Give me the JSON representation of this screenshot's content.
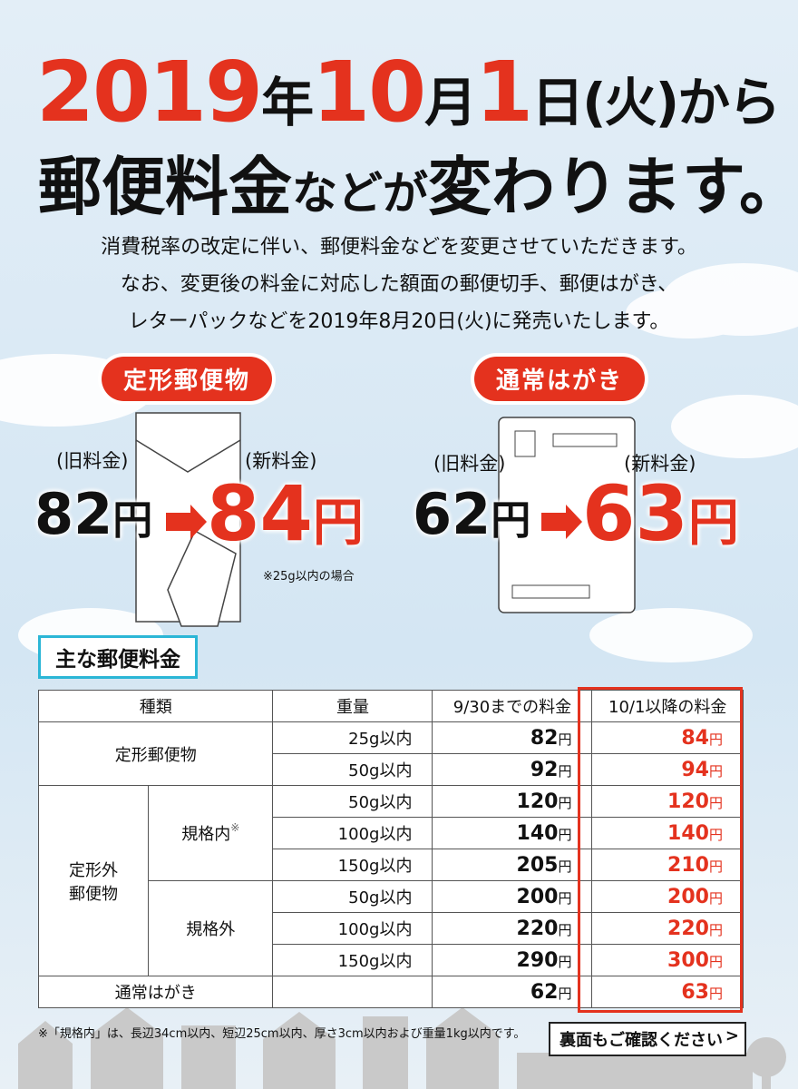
{
  "header": {
    "title_line1": [
      "2019",
      "年",
      "10",
      "月",
      "1",
      "日(火)から"
    ],
    "title_line2": [
      "郵便料金",
      "などが",
      "変わります。"
    ],
    "intro": [
      "消費税率の改定に伴い、郵便料金などを変更させていただきます。",
      "なお、変更後の料金に対応した額面の郵便切手、郵便はがき、",
      "レターパックなどを2019年8月20日(火)に発売いたします。"
    ]
  },
  "currency_unit": "円",
  "highlights": [
    {
      "label": "定形郵便物",
      "old_label": "(旧料金)",
      "new_label": "(新料金)",
      "old_price": 82,
      "new_price": 84,
      "note": "※25g以内の場合"
    },
    {
      "label": "通常はがき",
      "old_label": "(旧料金)",
      "new_label": "(新料金)",
      "old_price": 62,
      "new_price": 63
    }
  ],
  "table": {
    "title": "主な郵便料金",
    "columns": [
      "種類",
      "重量",
      "9/30までの料金",
      "10/1以降の料金"
    ],
    "groups": [
      {
        "name": "定形郵便物",
        "rows": [
          {
            "weight": "25g以内",
            "old": 82,
            "new": 84
          },
          {
            "weight": "50g以内",
            "old": 92,
            "new": 94
          }
        ]
      },
      {
        "name_lines": [
          "定形外",
          "郵便物"
        ],
        "subgroups": [
          {
            "name": "規格内",
            "mark": "※",
            "rows": [
              {
                "weight": "50g以内",
                "old": 120,
                "new": 120
              },
              {
                "weight": "100g以内",
                "old": 140,
                "new": 140
              },
              {
                "weight": "150g以内",
                "old": 205,
                "new": 210
              }
            ]
          },
          {
            "name": "規格外",
            "rows": [
              {
                "weight": "50g以内",
                "old": 200,
                "new": 200
              },
              {
                "weight": "100g以内",
                "old": 220,
                "new": 220
              },
              {
                "weight": "150g以内",
                "old": 290,
                "new": 300
              }
            ]
          }
        ]
      },
      {
        "name": "通常はがき",
        "rows": [
          {
            "old": 62,
            "new": 63
          }
        ]
      }
    ]
  },
  "footer": {
    "note": "※「規格内」は、長辺34cm以内、短辺25cm以内、厚さ3cm以内および重量1kg以内です。",
    "button": "裏面もご確認ください"
  }
}
